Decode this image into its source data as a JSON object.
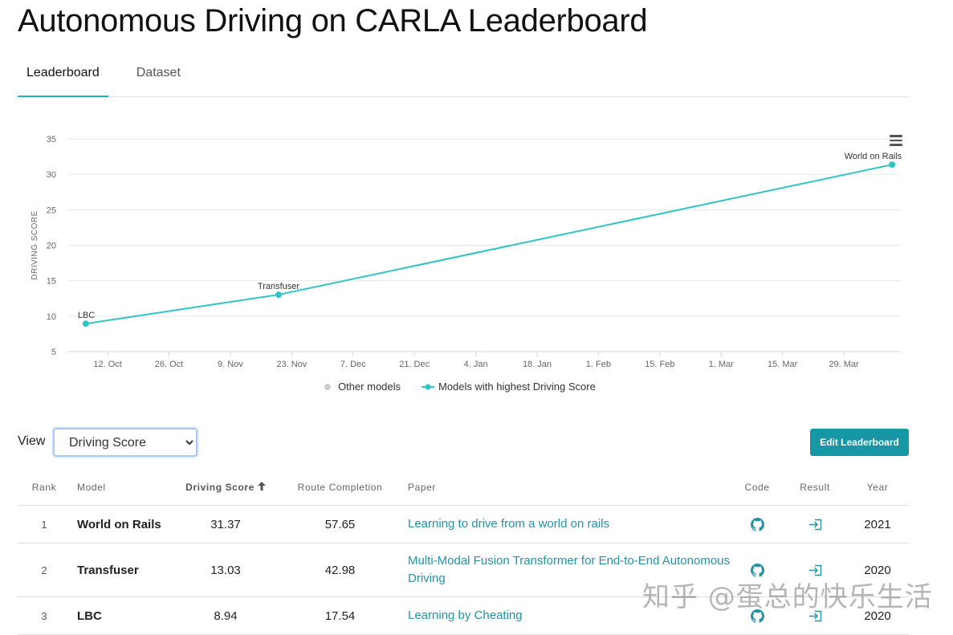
{
  "page": {
    "title": "Autonomous Driving on CARLA Leaderboard"
  },
  "tabs": [
    {
      "label": "Leaderboard",
      "active": true
    },
    {
      "label": "Dataset",
      "active": false
    }
  ],
  "chart_data": {
    "type": "line",
    "xlabel": "",
    "ylabel": "DRIVING SCORE",
    "ylim": [
      5,
      35
    ],
    "yticks": [
      5,
      10,
      15,
      20,
      25,
      30,
      35
    ],
    "xlim": [
      "2019-10-05",
      "2021-04-10"
    ],
    "xticks": [
      {
        "date": "2020-10-12",
        "label": "12. Oct"
      },
      {
        "date": "2020-10-26",
        "label": "26. Oct"
      },
      {
        "date": "2020-11-09",
        "label": "9. Nov"
      },
      {
        "date": "2020-11-23",
        "label": "23. Nov"
      },
      {
        "date": "2020-12-07",
        "label": "7. Dec"
      },
      {
        "date": "2020-12-21",
        "label": "21. Dec"
      },
      {
        "date": "2021-01-04",
        "label": "4. Jan"
      },
      {
        "date": "2021-01-18",
        "label": "18. Jan"
      },
      {
        "date": "2021-02-01",
        "label": "1. Feb"
      },
      {
        "date": "2021-02-15",
        "label": "15. Feb"
      },
      {
        "date": "2021-03-01",
        "label": "1. Mar"
      },
      {
        "date": "2021-03-15",
        "label": "15. Mar"
      },
      {
        "date": "2021-03-29",
        "label": "29. Mar"
      }
    ],
    "grid": true,
    "legend_position": "bottom-center",
    "series": [
      {
        "name": "Other models",
        "color": "#cccccc",
        "points": []
      },
      {
        "name": "Models with highest Driving Score",
        "color": "#2ec4c4",
        "points": [
          {
            "x": "2020-10-07",
            "y": 8.94,
            "label": "LBC"
          },
          {
            "x": "2020-11-20",
            "y": 13.03,
            "label": "Transfuser"
          },
          {
            "x": "2021-04-09",
            "y": 31.37,
            "label": "World on Rails"
          }
        ]
      }
    ]
  },
  "controls": {
    "view_label": "View",
    "view_selected": "Driving Score",
    "edit_button": "Edit Leaderboard"
  },
  "table": {
    "headers": {
      "rank": "Rank",
      "model": "Model",
      "driving_score": "Driving Score",
      "route_completion": "Route Completion",
      "paper": "Paper",
      "code": "Code",
      "result": "Result",
      "year": "Year"
    },
    "rows": [
      {
        "rank": "1",
        "model": "World on Rails",
        "driving_score": "31.37",
        "route_completion": "57.65",
        "paper": "Learning to drive from a world on rails",
        "year": "2021"
      },
      {
        "rank": "2",
        "model": "Transfuser",
        "driving_score": "13.03",
        "route_completion": "42.98",
        "paper": "Multi-Modal Fusion Transformer for End-to-End Autonomous Driving",
        "year": "2020"
      },
      {
        "rank": "3",
        "model": "LBC",
        "driving_score": "8.94",
        "route_completion": "17.54",
        "paper": "Learning by Cheating",
        "year": "2020"
      }
    ],
    "code_icon": "github-icon",
    "result_icon": "result-login-icon"
  },
  "watermark": {
    "text": "知乎 @蛋总的快乐生活"
  },
  "colors": {
    "accent": "#21b6bd",
    "button": "#1597a6",
    "link": "#2491a4",
    "series": "#2ec4c4"
  }
}
